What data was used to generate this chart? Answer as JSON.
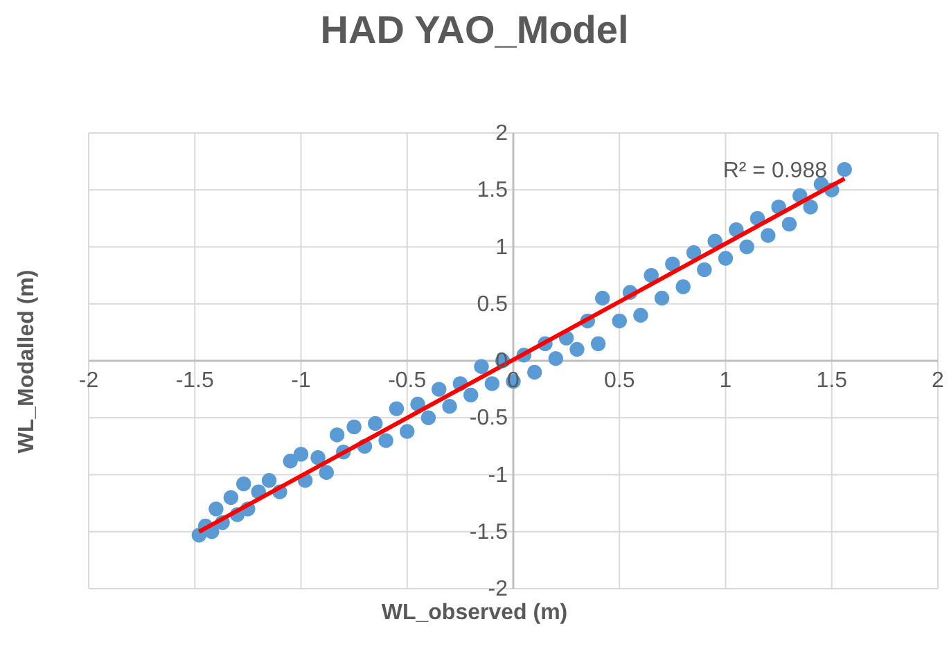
{
  "chart_data": {
    "type": "scatter",
    "title": "HAD YAO_Model",
    "xlabel": "WL_observed (m)",
    "ylabel": "WL_Modalled (m)",
    "xlim": [
      -2,
      2
    ],
    "ylim": [
      -2,
      2
    ],
    "xticks": [
      -2,
      -1.5,
      -1,
      -0.5,
      0,
      0.5,
      1,
      1.5,
      2
    ],
    "yticks": [
      -2,
      -1.5,
      -1,
      -0.5,
      0,
      0.5,
      1,
      1.5,
      2
    ],
    "grid": true,
    "legend": false,
    "annotations": [
      "R² = 0.988"
    ],
    "series": [
      {
        "type": "scatter",
        "marker": "circle",
        "color": "#5b9bd5",
        "x": [
          -1.48,
          -1.45,
          -1.42,
          -1.4,
          -1.37,
          -1.33,
          -1.3,
          -1.27,
          -1.25,
          -1.2,
          -1.15,
          -1.1,
          -1.05,
          -1.0,
          -0.98,
          -0.92,
          -0.88,
          -0.83,
          -0.8,
          -0.75,
          -0.7,
          -0.65,
          -0.6,
          -0.55,
          -0.5,
          -0.45,
          -0.4,
          -0.35,
          -0.3,
          -0.25,
          -0.2,
          -0.15,
          -0.1,
          -0.05,
          0.0,
          0.05,
          0.1,
          0.15,
          0.2,
          0.25,
          0.3,
          0.35,
          0.4,
          0.42,
          0.5,
          0.55,
          0.6,
          0.65,
          0.7,
          0.75,
          0.8,
          0.85,
          0.9,
          0.95,
          1.0,
          1.05,
          1.1,
          1.15,
          1.2,
          1.25,
          1.3,
          1.35,
          1.4,
          1.45,
          1.5,
          1.56
        ],
        "values": [
          -1.53,
          -1.45,
          -1.5,
          -1.3,
          -1.42,
          -1.2,
          -1.35,
          -1.08,
          -1.3,
          -1.15,
          -1.05,
          -1.15,
          -0.88,
          -0.82,
          -1.05,
          -0.85,
          -0.98,
          -0.65,
          -0.8,
          -0.58,
          -0.75,
          -0.55,
          -0.7,
          -0.42,
          -0.62,
          -0.38,
          -0.5,
          -0.25,
          -0.4,
          -0.2,
          -0.3,
          -0.05,
          -0.2,
          0.0,
          -0.18,
          0.05,
          -0.1,
          0.15,
          0.02,
          0.2,
          0.1,
          0.35,
          0.15,
          0.55,
          0.35,
          0.6,
          0.4,
          0.75,
          0.55,
          0.85,
          0.65,
          0.95,
          0.8,
          1.05,
          0.9,
          1.15,
          1.0,
          1.25,
          1.1,
          1.35,
          1.2,
          1.45,
          1.35,
          1.55,
          1.5,
          1.68
        ]
      },
      {
        "type": "line",
        "marker": "none",
        "color": "#ff0000",
        "x": [
          -1.48,
          1.56
        ],
        "values": [
          -1.5,
          1.6
        ]
      }
    ]
  }
}
